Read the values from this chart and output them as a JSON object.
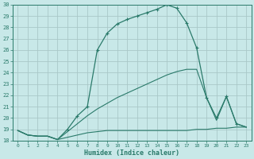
{
  "xlabel": "Humidex (Indice chaleur)",
  "bg_color": "#c8e8e8",
  "grid_color": "#aac8c8",
  "line_color": "#2a7a6a",
  "xlim": [
    -0.5,
    23.5
  ],
  "ylim": [
    18,
    30
  ],
  "xticks": [
    0,
    1,
    2,
    3,
    4,
    5,
    6,
    7,
    8,
    9,
    10,
    11,
    12,
    13,
    14,
    15,
    16,
    17,
    18,
    19,
    20,
    21,
    22,
    23
  ],
  "yticks": [
    18,
    19,
    20,
    21,
    22,
    23,
    24,
    25,
    26,
    27,
    28,
    29,
    30
  ],
  "line1_x": [
    0,
    1,
    2,
    3,
    4,
    5,
    6,
    7,
    8,
    9,
    10,
    11,
    12,
    13,
    14,
    15,
    16,
    17,
    18,
    19,
    20,
    21,
    22,
    23
  ],
  "line1_y": [
    18.9,
    18.5,
    18.4,
    18.4,
    18.1,
    18.3,
    18.5,
    18.7,
    18.8,
    18.9,
    18.9,
    18.9,
    18.9,
    18.9,
    18.9,
    18.9,
    18.9,
    18.9,
    19.0,
    19.0,
    19.1,
    19.1,
    19.2,
    19.2
  ],
  "line2_x": [
    0,
    1,
    2,
    3,
    4,
    5,
    6,
    7,
    8,
    9,
    10,
    11,
    12,
    13,
    14,
    15,
    16,
    17,
    18,
    19,
    20,
    21,
    22,
    23
  ],
  "line2_y": [
    18.9,
    18.5,
    18.4,
    18.4,
    18.1,
    18.8,
    19.5,
    20.2,
    20.8,
    21.3,
    21.8,
    22.2,
    22.6,
    23.0,
    23.4,
    23.8,
    24.1,
    24.3,
    24.3,
    21.8,
    19.8,
    21.9,
    19.5,
    19.2
  ],
  "line3_x": [
    0,
    1,
    2,
    3,
    4,
    5,
    6,
    7,
    8,
    9,
    10,
    11,
    12,
    13,
    14,
    15,
    16,
    17,
    18,
    19,
    20,
    21,
    22,
    23
  ],
  "line3_y": [
    18.9,
    18.5,
    18.4,
    18.4,
    18.1,
    19.0,
    20.2,
    21.0,
    26.0,
    27.5,
    28.3,
    28.7,
    29.0,
    29.3,
    29.6,
    30.0,
    29.7,
    28.4,
    26.2,
    21.8,
    20.0,
    21.9,
    19.5,
    19.2
  ],
  "line3_markers": [
    5,
    6,
    7,
    8,
    9,
    10,
    11,
    12,
    13,
    14,
    15,
    16,
    17,
    18,
    19,
    20,
    21,
    22
  ]
}
